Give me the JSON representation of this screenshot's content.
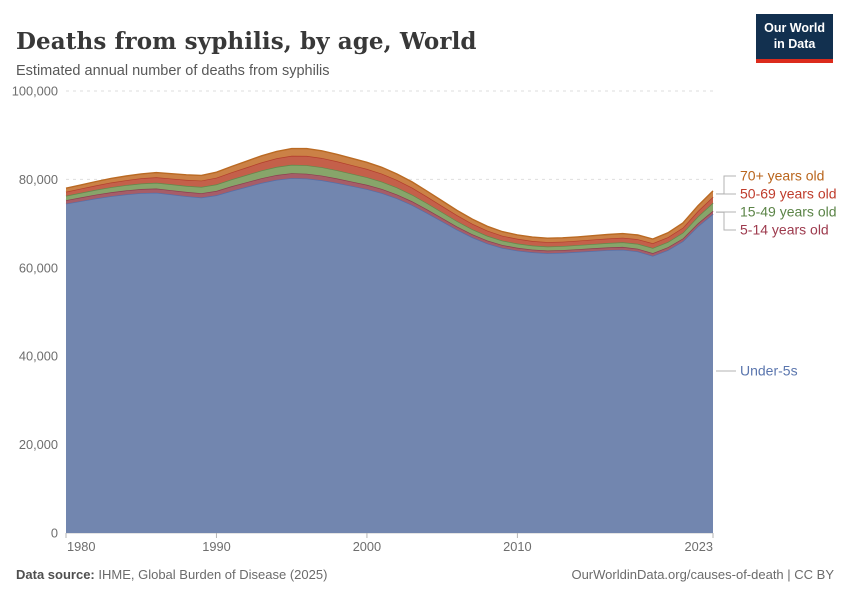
{
  "logo": {
    "line1": "Our World",
    "line2": "in Data",
    "bg_color": "#12304f",
    "accent_color": "#dc2b1c"
  },
  "footer": {
    "datasource_label": "Data source:",
    "datasource_value": " IHME, Global Burden of Disease (2025)",
    "link": "OurWorldinData.org/causes-of-death | CC BY"
  },
  "chart_data": {
    "type": "area",
    "stacked": true,
    "title": "Deaths from syphilis, by age, World",
    "subtitle": "Estimated annual number of deaths from syphilis",
    "xlabel": "",
    "ylabel": "",
    "xlim": [
      1980,
      2023
    ],
    "ylim": [
      0,
      100000
    ],
    "grid": true,
    "legend_position": "right",
    "yticks": [
      {
        "value": 0,
        "label": "0"
      },
      {
        "value": 20000,
        "label": "20,000"
      },
      {
        "value": 40000,
        "label": "40,000"
      },
      {
        "value": 60000,
        "label": "60,000"
      },
      {
        "value": 80000,
        "label": "80,000"
      },
      {
        "value": 100000,
        "label": "100,000"
      }
    ],
    "xticks": [
      {
        "year": 1980,
        "label": "1980",
        "anchor": "start"
      },
      {
        "year": 1990,
        "label": "1990",
        "anchor": "middle"
      },
      {
        "year": 2000,
        "label": "2000",
        "anchor": "middle"
      },
      {
        "year": 2010,
        "label": "2010",
        "anchor": "middle"
      },
      {
        "year": 2023,
        "label": "2023",
        "anchor": "end"
      }
    ],
    "years": [
      1980,
      1981,
      1982,
      1983,
      1984,
      1985,
      1986,
      1987,
      1988,
      1989,
      1990,
      1991,
      1992,
      1993,
      1994,
      1995,
      1996,
      1997,
      1998,
      1999,
      2000,
      2001,
      2002,
      2003,
      2004,
      2005,
      2006,
      2007,
      2008,
      2009,
      2010,
      2011,
      2012,
      2013,
      2014,
      2015,
      2016,
      2017,
      2018,
      2019,
      2020,
      2021,
      2022,
      2023
    ],
    "series": [
      {
        "name": "Under-5s",
        "fill": "#7286af",
        "line": "#566fa7",
        "label_color": "#5b76ae",
        "values": [
          74500,
          75100,
          75700,
          76200,
          76600,
          76900,
          77000,
          76600,
          76200,
          75900,
          76400,
          77400,
          78300,
          79200,
          79900,
          80300,
          80200,
          79800,
          79200,
          78500,
          77800,
          76900,
          75700,
          74200,
          72400,
          70500,
          68600,
          66900,
          65500,
          64500,
          63900,
          63500,
          63300,
          63400,
          63600,
          63800,
          64000,
          64100,
          63700,
          62700,
          64000,
          66000,
          69400,
          72200
        ]
      },
      {
        "name": "5-14 years old",
        "fill": "#a65d68",
        "line": "#8d3c50",
        "label_color": "#9d3a4d",
        "values": [
          800,
          830,
          860,
          890,
          910,
          930,
          950,
          960,
          970,
          980,
          1000,
          1030,
          1060,
          1080,
          1100,
          1100,
          1090,
          1060,
          1030,
          1000,
          970,
          930,
          890,
          850,
          810,
          770,
          730,
          700,
          670,
          650,
          630,
          620,
          610,
          610,
          610,
          620,
          620,
          630,
          630,
          630,
          630,
          640,
          670,
          700
        ]
      },
      {
        "name": "15-49 years old",
        "fill": "#87a56a",
        "line": "#61894b",
        "label_color": "#5b8447",
        "values": [
          1000,
          1040,
          1090,
          1140,
          1190,
          1240,
          1290,
          1330,
          1370,
          1420,
          1480,
          1560,
          1650,
          1740,
          1830,
          1900,
          1920,
          1900,
          1850,
          1790,
          1730,
          1660,
          1580,
          1490,
          1400,
          1310,
          1220,
          1140,
          1070,
          1010,
          960,
          930,
          910,
          910,
          920,
          950,
          990,
          1040,
          1090,
          1140,
          1200,
          1310,
          1540,
          1800
        ]
      },
      {
        "name": "50-69 years old",
        "fill": "#c4604a",
        "line": "#b23e2c",
        "label_color": "#bf3c2c",
        "values": [
          900,
          950,
          1000,
          1060,
          1110,
          1170,
          1230,
          1290,
          1350,
          1420,
          1500,
          1600,
          1710,
          1830,
          1950,
          2050,
          2100,
          2080,
          2020,
          1950,
          1880,
          1790,
          1700,
          1600,
          1500,
          1410,
          1320,
          1240,
          1170,
          1110,
          1060,
          1020,
          1000,
          990,
          990,
          1000,
          1010,
          1030,
          1050,
          1070,
          1090,
          1130,
          1240,
          1350
        ]
      },
      {
        "name": "70+ years old",
        "fill": "#cb8146",
        "line": "#ba6a23",
        "label_color": "#b9651c",
        "values": [
          800,
          840,
          880,
          930,
          970,
          1010,
          1060,
          1100,
          1140,
          1190,
          1250,
          1320,
          1400,
          1480,
          1560,
          1620,
          1650,
          1630,
          1590,
          1540,
          1490,
          1430,
          1360,
          1290,
          1220,
          1150,
          1090,
          1030,
          980,
          930,
          900,
          880,
          870,
          870,
          880,
          890,
          910,
          930,
          950,
          970,
          1000,
          1050,
          1190,
          1350
        ]
      }
    ],
    "legend": [
      {
        "label": "70+ years old",
        "row_y": 176
      },
      {
        "label": "50-69 years old",
        "row_y": 194
      },
      {
        "label": "15-49 years old",
        "row_y": 212
      },
      {
        "label": "5-14 years old",
        "row_y": 230
      },
      {
        "label": "Under-5s",
        "row_y": 371
      }
    ]
  }
}
